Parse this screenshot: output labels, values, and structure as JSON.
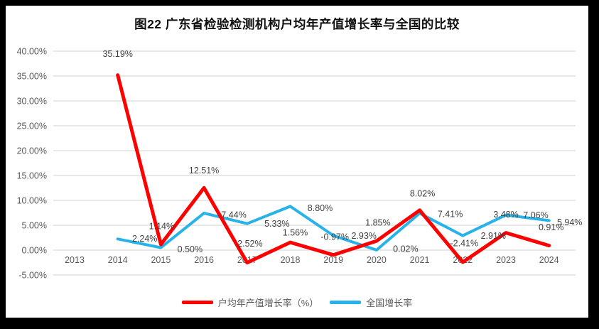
{
  "frame": {
    "background": "#000000",
    "canvas_background": "#ffffff"
  },
  "chart_data": {
    "type": "line",
    "title": "图22  广东省检验检测机构户均年产值增长率与全国的比较",
    "categories": [
      "2013",
      "2014",
      "2015",
      "2016",
      "2017",
      "2018",
      "2019",
      "2020",
      "2021",
      "2022",
      "2023",
      "2024"
    ],
    "series": [
      {
        "name": "户均年产值增长率（%）",
        "color": "#fe0000",
        "values": [
          null,
          35.19,
          1.14,
          12.51,
          -2.52,
          1.56,
          -0.97,
          1.85,
          8.02,
          -2.41,
          3.48,
          0.91
        ],
        "point_labels": [
          null,
          "35.19%",
          "1.14%",
          "12.51%",
          "-2.52%",
          "1.56%",
          "-0.97%",
          "1.85%",
          "8.02%",
          "-2.41%",
          "3.48%",
          "0.91%"
        ]
      },
      {
        "name": "全国增长率",
        "color": "#27b2e8",
        "values": [
          null,
          2.24,
          0.5,
          7.44,
          5.33,
          8.8,
          2.93,
          0.02,
          7.41,
          2.91,
          7.06,
          5.94
        ],
        "point_labels": [
          null,
          "2.24%",
          "0.50%",
          "7.44%",
          "5.33%",
          "8.80%",
          "2.93%",
          "0.02%",
          "7.41%",
          "2.91%",
          "7.06%",
          "5.94%"
        ]
      }
    ],
    "yticks": [
      "40.00%",
      "35.00%",
      "30.00%",
      "25.00%",
      "20.00%",
      "15.00%",
      "10.00%",
      "5.00%",
      "0.00%",
      "-5.00%"
    ],
    "ylim": [
      -5,
      40
    ],
    "ytick_step": 5,
    "grid": true,
    "legend_position": "bottom",
    "axis_label_color": "#595959",
    "data_label_color": "#404040",
    "gridline_color": "#d9d9d9"
  }
}
